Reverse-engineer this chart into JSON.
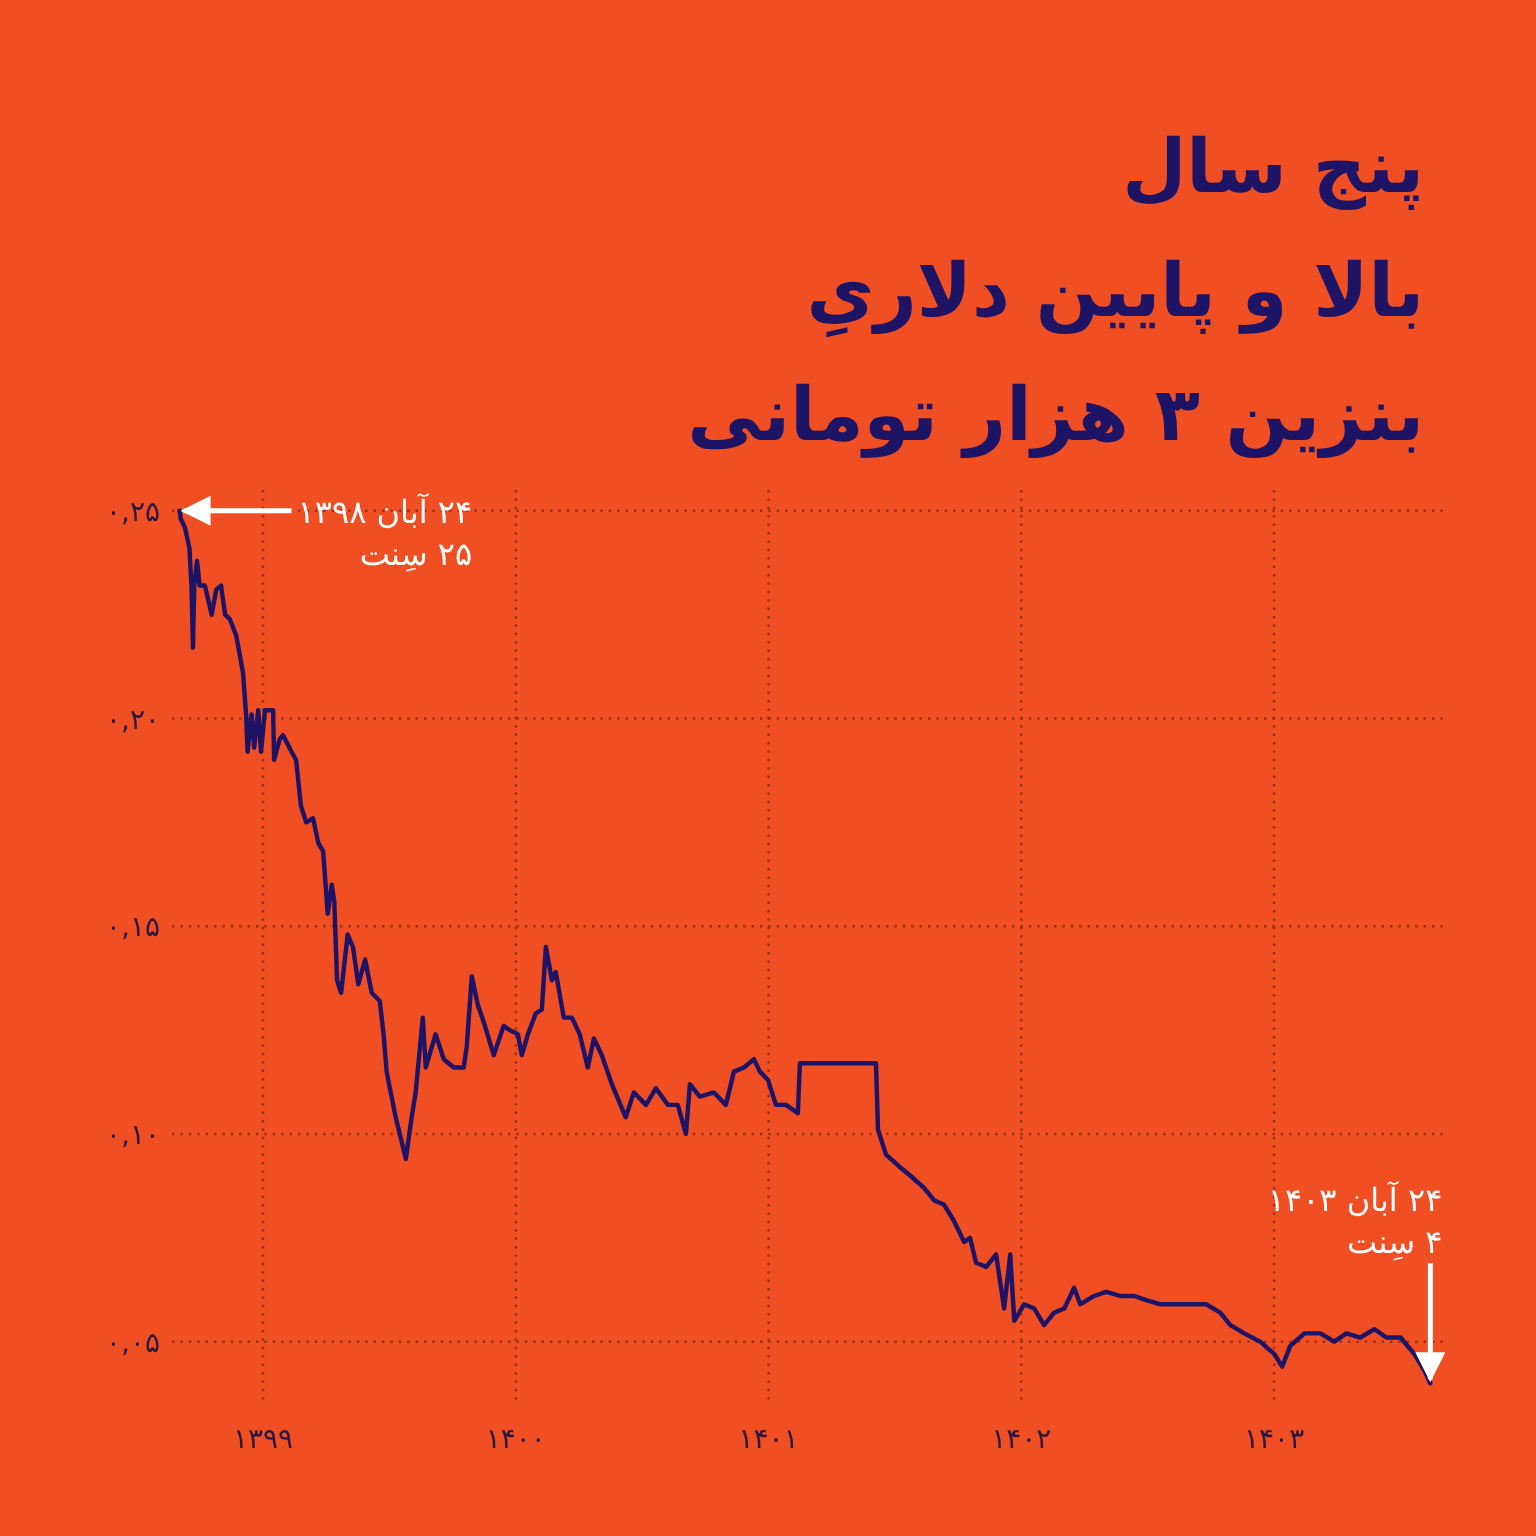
{
  "chart_data": {
    "type": "line",
    "title": "پنج سال\nبالا و پایین دلاریِ\nبنزین ۳ هزار تومانی",
    "x": [
      1398.67,
      1398.675,
      1398.691,
      1398.709,
      1398.717,
      1398.723,
      1398.728,
      1398.739,
      1398.749,
      1398.77,
      1398.797,
      1398.815,
      1398.834,
      1398.85,
      1398.868,
      1398.894,
      1398.921,
      1398.933,
      1398.939,
      1398.955,
      1398.965,
      1398.981,
      1398.992,
      1399.008,
      1399.04,
      1399.044,
      1399.066,
      1399.079,
      1399.113,
      1399.131,
      1399.15,
      1399.171,
      1399.198,
      1399.219,
      1399.238,
      1399.256,
      1399.272,
      1399.282,
      1399.293,
      1399.309,
      1399.335,
      1399.356,
      1399.377,
      1399.404,
      1399.43,
      1399.462,
      1399.477,
      1399.489,
      1399.525,
      1399.565,
      1399.588,
      1399.604,
      1399.632,
      1399.644,
      1399.683,
      1399.715,
      1399.755,
      1399.794,
      1399.806,
      1399.826,
      1399.85,
      1399.873,
      1399.913,
      1399.952,
      1399.976,
      1400.008,
      1400.024,
      1400.048,
      1400.079,
      1400.103,
      1400.119,
      1400.143,
      1400.158,
      1400.19,
      1400.222,
      1400.253,
      1400.285,
      1400.309,
      1400.34,
      1400.38,
      1400.435,
      1400.467,
      1400.515,
      1400.554,
      1400.602,
      1400.641,
      1400.673,
      1400.689,
      1400.728,
      1400.784,
      1400.831,
      1400.863,
      1400.903,
      1400.942,
      1400.966,
      1400.998,
      1401.029,
      1401.069,
      1401.116,
      1401.124,
      1401.425,
      1401.433,
      1401.465,
      1401.52,
      1401.56,
      1401.615,
      1401.655,
      1401.694,
      1401.734,
      1401.774,
      1401.797,
      1401.821,
      1401.861,
      1401.9,
      1401.932,
      1401.956,
      1401.972,
      1402.011,
      1402.051,
      1402.09,
      1402.13,
      1402.17,
      1402.209,
      1402.233,
      1402.288,
      1402.336,
      1402.391,
      1402.447,
      1402.494,
      1402.55,
      1402.605,
      1402.684,
      1402.732,
      1402.787,
      1402.827,
      1402.882,
      1402.945,
      1403.001,
      1403.032,
      1403.064,
      1403.12,
      1403.183,
      1403.238,
      1403.286,
      1403.341,
      1403.397,
      1403.444,
      1403.5,
      1403.555,
      1403.595,
      1403.618
    ],
    "series": [
      {
        "color": "#1d1466",
        "values": [
          0.25,
          0.248,
          0.246,
          0.241,
          0.232,
          0.217,
          0.232,
          0.238,
          0.232,
          0.232,
          0.225,
          0.231,
          0.232,
          0.225,
          0.224,
          0.22,
          0.211,
          0.201,
          0.192,
          0.201,
          0.193,
          0.202,
          0.192,
          0.202,
          0.202,
          0.19,
          0.195,
          0.196,
          0.192,
          0.19,
          0.179,
          0.175,
          0.176,
          0.17,
          0.168,
          0.153,
          0.16,
          0.156,
          0.137,
          0.134,
          0.148,
          0.145,
          0.136,
          0.142,
          0.134,
          0.132,
          0.124,
          0.115,
          0.104,
          0.094,
          0.104,
          0.11,
          0.128,
          0.116,
          0.124,
          0.118,
          0.116,
          0.116,
          0.121,
          0.138,
          0.131,
          0.127,
          0.119,
          0.126,
          0.125,
          0.124,
          0.119,
          0.124,
          0.129,
          0.13,
          0.145,
          0.137,
          0.139,
          0.128,
          0.128,
          0.124,
          0.116,
          0.123,
          0.119,
          0.112,
          0.104,
          0.11,
          0.107,
          0.111,
          0.107,
          0.107,
          0.1,
          0.112,
          0.109,
          0.11,
          0.107,
          0.115,
          0.116,
          0.118,
          0.115,
          0.113,
          0.107,
          0.107,
          0.105,
          0.117,
          0.117,
          0.101,
          0.095,
          0.092,
          0.09,
          0.087,
          0.084,
          0.083,
          0.079,
          0.074,
          0.075,
          0.069,
          0.068,
          0.071,
          0.058,
          0.071,
          0.055,
          0.059,
          0.058,
          0.054,
          0.057,
          0.058,
          0.063,
          0.059,
          0.061,
          0.062,
          0.061,
          0.061,
          0.06,
          0.059,
          0.059,
          0.059,
          0.059,
          0.057,
          0.054,
          0.052,
          0.05,
          0.047,
          0.044,
          0.049,
          0.052,
          0.052,
          0.05,
          0.052,
          0.051,
          0.053,
          0.051,
          0.051,
          0.047,
          0.043,
          0.04
        ]
      }
    ],
    "xlim": [
      1398.64,
      1403.68
    ],
    "xticks": [
      {
        "value": 1399,
        "label": "۱۳۹۹"
      },
      {
        "value": 1400,
        "label": "۱۴۰۰"
      },
      {
        "value": 1401,
        "label": "۱۴۰۱"
      },
      {
        "value": 1402,
        "label": "۱۴۰۲"
      },
      {
        "value": 1403,
        "label": "۱۴۰۳"
      }
    ],
    "ylim": [
      0.035,
      0.255
    ],
    "yticks": [
      {
        "value": 0.05,
        "label": "۰,۰۵"
      },
      {
        "value": 0.1,
        "label": "۰,۱۰"
      },
      {
        "value": 0.15,
        "label": "۰,۱۵"
      },
      {
        "value": 0.2,
        "label": "۰,۲۰"
      },
      {
        "value": 0.25,
        "label": "۰,۲۵"
      }
    ],
    "grid": true,
    "annotations": [
      {
        "text": "۲۴ آبان ۱۳۹۸\n۲۵ سِنت",
        "x": 1398.67,
        "y": 0.25
      },
      {
        "text": "۲۴ آبان ۱۴۰۳\n۴ سِنت",
        "x": 1403.618,
        "y": 0.04
      }
    ]
  }
}
